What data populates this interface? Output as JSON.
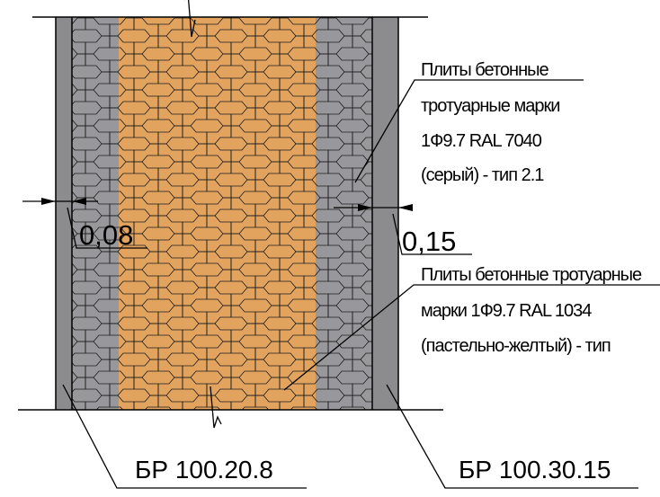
{
  "colors": {
    "background": "#ffffff",
    "curb": "#8c8c8e",
    "gray_tile": "#98989c",
    "yellow_tile": "#e2a35f",
    "tile_outline": "#1c1c1c",
    "line": "#000000"
  },
  "labels": {
    "gray_plate": {
      "line1": "Плиты бетонные",
      "line2": "тротуарные марки",
      "line3": "1Ф9.7 RAL 7040",
      "line4": "(серый) - тип 2.1"
    },
    "yellow_plate": {
      "line1": "Плиты бетонные тротуарные",
      "line2": "марки 1Ф9.7 RAL 1034",
      "line3": "(пастельно-желтый) - тип"
    },
    "dim_left": "0,08",
    "dim_right": "0,15",
    "curb_left": "БР 100.20.8",
    "curb_right": "БР 100.30.15"
  }
}
